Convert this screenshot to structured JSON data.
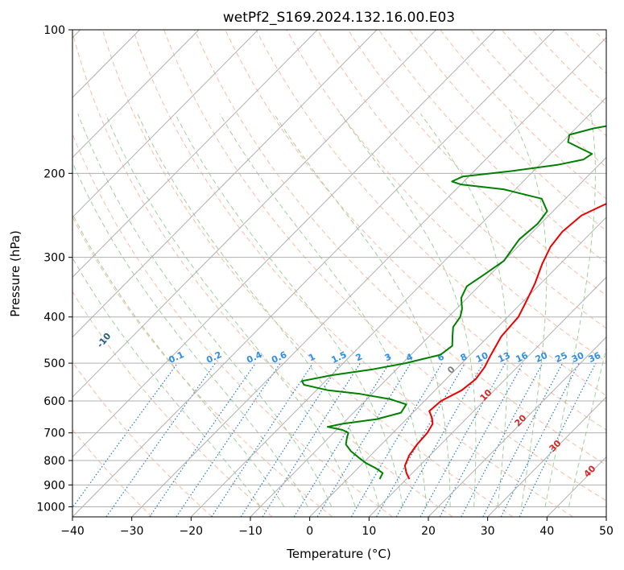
{
  "chart_data": {
    "type": "line",
    "chart_kind": "Skew-T log-P diagram",
    "title": "wetPf2_S169.2024.132.16.00.E03",
    "xlabel": "Temperature (°C)",
    "ylabel": "Pressure (hPa)",
    "xlim": [
      -40,
      50
    ],
    "ylim": [
      1050,
      100
    ],
    "y_scale": "log",
    "x_ticks": [
      "−40",
      "−30",
      "−20",
      "−10",
      "0",
      "10",
      "20",
      "30",
      "40",
      "50"
    ],
    "y_ticks": [
      "100",
      "200",
      "300",
      "400",
      "500",
      "600",
      "700",
      "800",
      "900",
      "1000"
    ],
    "grid": true,
    "series": [
      {
        "color": "#ee0000",
        "points": [
          [
            10.5,
            875
          ],
          [
            9.0,
            850
          ],
          [
            7.5,
            820
          ],
          [
            6.5,
            780
          ],
          [
            6.0,
            740
          ],
          [
            5.8,
            700
          ],
          [
            5.2,
            670
          ],
          [
            4.0,
            650
          ],
          [
            2.5,
            630
          ],
          [
            2.8,
            600
          ],
          [
            4.5,
            570
          ],
          [
            5.0,
            540
          ],
          [
            4.5,
            510
          ],
          [
            3.5,
            480
          ],
          [
            2.2,
            440
          ],
          [
            1.8,
            400
          ],
          [
            0.5,
            370
          ],
          [
            -1.0,
            340
          ],
          [
            -3.0,
            310
          ],
          [
            -4.5,
            285
          ],
          [
            -5.0,
            265
          ],
          [
            -4.5,
            245
          ],
          [
            -2.0,
            230
          ],
          [
            1.0,
            220
          ],
          [
            5.0,
            210
          ],
          [
            7.5,
            200
          ],
          [
            10.0,
            185
          ],
          [
            13.0,
            172
          ],
          [
            16.0,
            160
          ],
          [
            18.5,
            150
          ],
          [
            22.0,
            140
          ],
          [
            25.0,
            132
          ],
          [
            27.5,
            125
          ],
          [
            29.0,
            117
          ],
          [
            30.5,
            109
          ],
          [
            32.0,
            103
          ],
          [
            33.0,
            100
          ]
        ]
      },
      {
        "color": "#008000",
        "points": [
          [
            5.5,
            875
          ],
          [
            5.0,
            850
          ],
          [
            3.0,
            830
          ],
          [
            0.5,
            810
          ],
          [
            -1.5,
            790
          ],
          [
            -4.0,
            765
          ],
          [
            -6.0,
            740
          ],
          [
            -7.0,
            715
          ],
          [
            -7.5,
            700
          ],
          [
            -9.0,
            690
          ],
          [
            -12.0,
            680
          ],
          [
            -10.0,
            670
          ],
          [
            -5.0,
            655
          ],
          [
            -2.0,
            635
          ],
          [
            -2.5,
            610
          ],
          [
            -6.0,
            595
          ],
          [
            -12.0,
            580
          ],
          [
            -18.0,
            570
          ],
          [
            -23.0,
            555
          ],
          [
            -24.0,
            545
          ],
          [
            -20.0,
            530
          ],
          [
            -14.0,
            515
          ],
          [
            -9.5,
            500
          ],
          [
            -5.0,
            480
          ],
          [
            -4.5,
            460
          ],
          [
            -6.0,
            440
          ],
          [
            -7.5,
            420
          ],
          [
            -8.0,
            400
          ],
          [
            -9.0,
            385
          ],
          [
            -11.0,
            365
          ],
          [
            -12.0,
            345
          ],
          [
            -11.0,
            325
          ],
          [
            -10.0,
            305
          ],
          [
            -10.5,
            290
          ],
          [
            -11.0,
            275
          ],
          [
            -10.5,
            255
          ],
          [
            -11.0,
            240
          ],
          [
            -14.0,
            226
          ],
          [
            -22.0,
            216
          ],
          [
            -30.0,
            211
          ],
          [
            -32.0,
            208
          ],
          [
            -31.0,
            203
          ],
          [
            -24.0,
            198
          ],
          [
            -17.0,
            192
          ],
          [
            -13.5,
            187
          ],
          [
            -13.0,
            182
          ],
          [
            -16.0,
            177
          ],
          [
            -19.0,
            172
          ],
          [
            -20.0,
            166
          ],
          [
            -17.0,
            161
          ],
          [
            -11.0,
            155
          ],
          [
            -5.5,
            149
          ],
          [
            -3.5,
            143
          ],
          [
            -6.0,
            137
          ],
          [
            -12.0,
            132
          ],
          [
            -20.0,
            126
          ],
          [
            -23.0,
            121
          ],
          [
            -20.0,
            118
          ],
          [
            -14.0,
            114
          ],
          [
            -9.0,
            110
          ],
          [
            -6.0,
            105
          ],
          [
            -4.0,
            101
          ],
          [
            -3.5,
            100
          ]
        ]
      }
    ],
    "dry_adiabat_labels": [
      "-100",
      "-90",
      "-80",
      "-70",
      "-60",
      "-50",
      "-40",
      "-30",
      "-20",
      "-10"
    ],
    "mixing_ratio_labels": [
      "0.1",
      "0.2",
      "0.4",
      "0.6",
      "1",
      "1.5",
      "2",
      "3",
      "4",
      "6",
      "8",
      "10",
      "13",
      "16",
      "20",
      "25",
      "30",
      "36"
    ],
    "moist_adiabat_labels": [
      "0",
      "10",
      "20",
      "30",
      "40"
    ],
    "colors": {
      "isotherm": "#b0b0b0",
      "isobar": "#b0b0b0",
      "dry_adiabat": "#f4a582",
      "moist_adiabat": "#7fbf7b",
      "mixing_ratio": "#1f78d1",
      "dry_label": "#1f5f8b",
      "mixing_label": "#2f8ee8",
      "moist_label": "#d62728",
      "temperature": "#ee0000",
      "dewpoint": "#008000"
    }
  }
}
